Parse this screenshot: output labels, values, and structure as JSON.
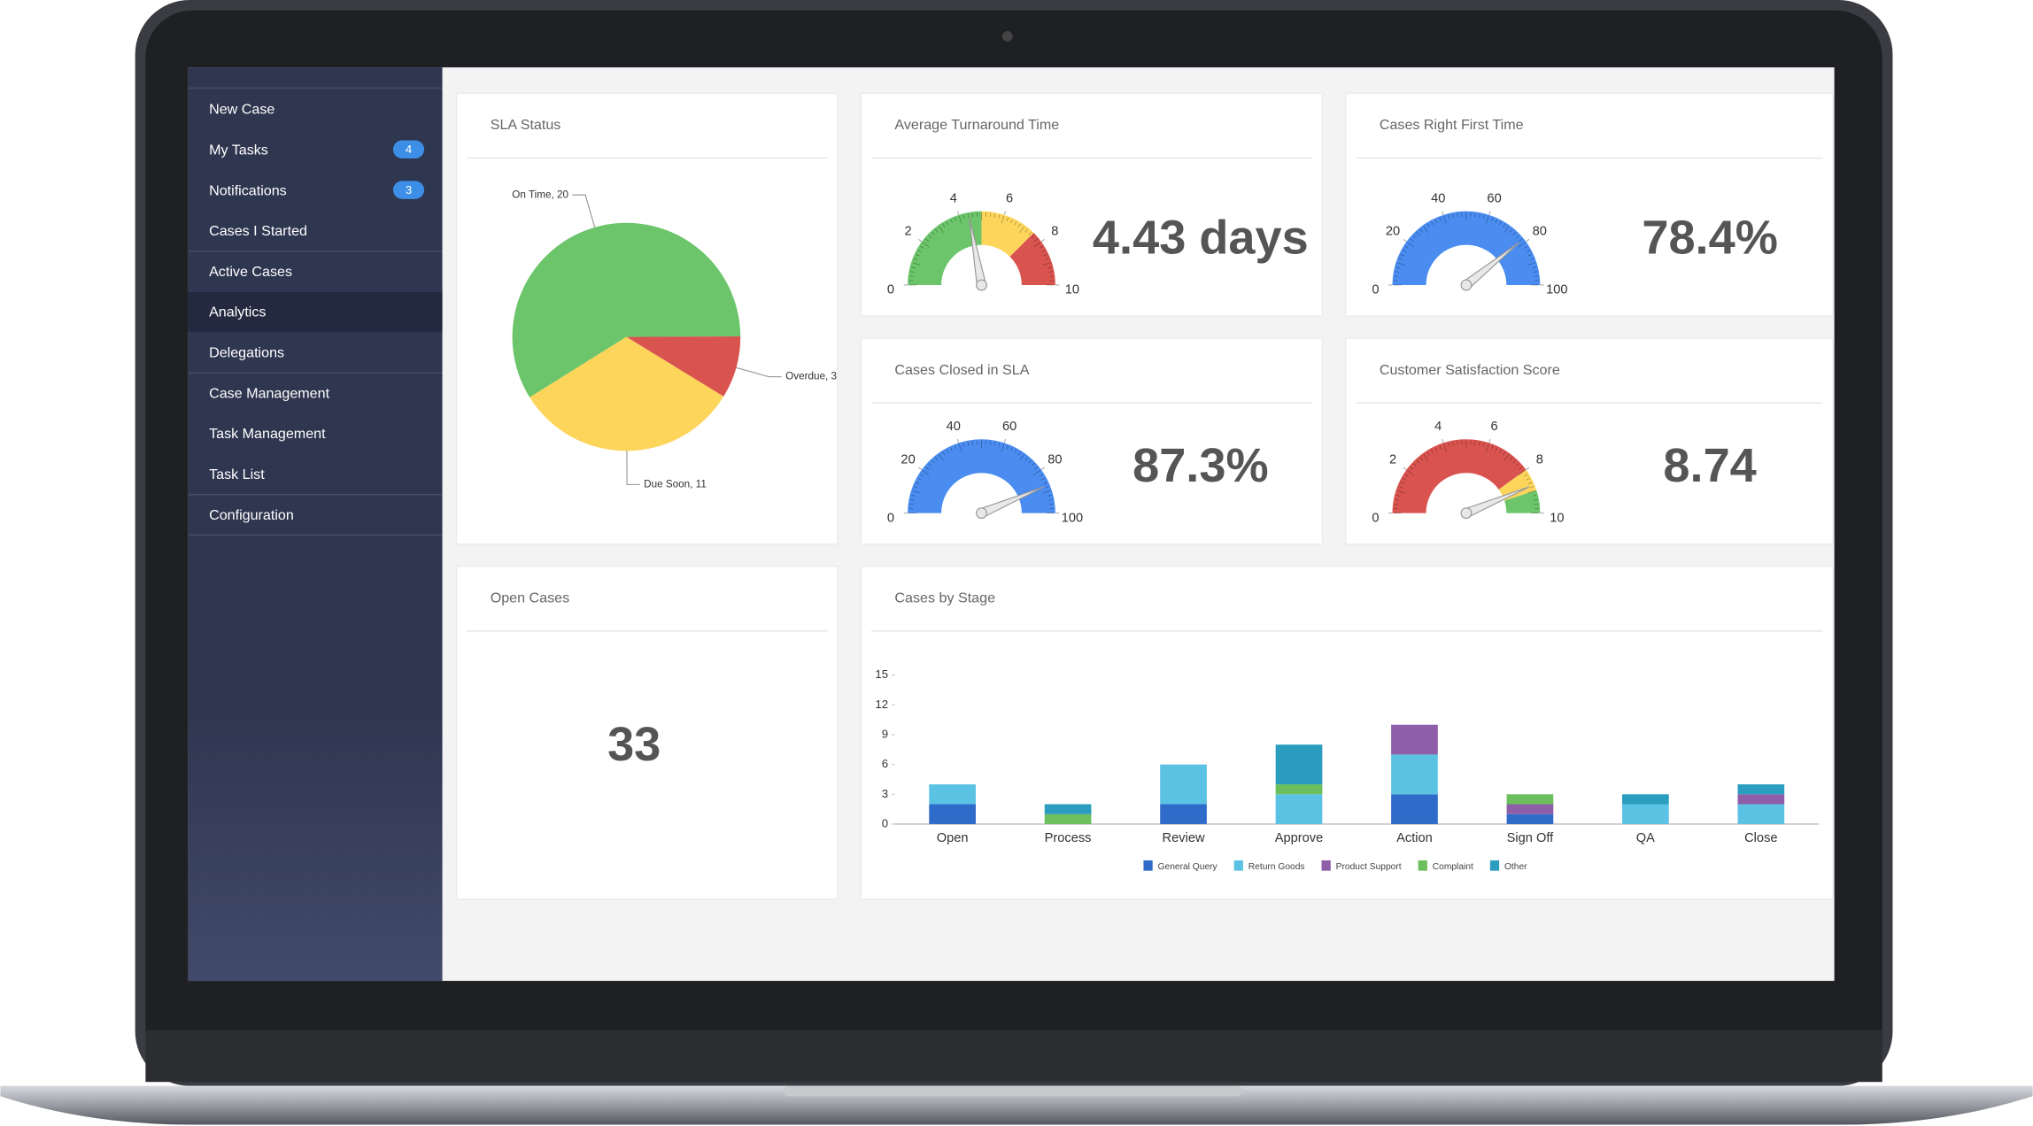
{
  "sidebar": {
    "items": [
      {
        "label": "New Case"
      },
      {
        "label": "My Tasks",
        "badge": 4
      },
      {
        "label": "Notifications",
        "badge": 3
      },
      {
        "label": "Cases I Started"
      },
      {
        "label": "Active Cases"
      },
      {
        "label": "Analytics",
        "active": true
      },
      {
        "label": "Delegations"
      },
      {
        "label": "Case Management"
      },
      {
        "label": "Task Management"
      },
      {
        "label": "Task List"
      },
      {
        "label": "Configuration"
      }
    ]
  },
  "sla_status": {
    "type": "pie",
    "title": "SLA Status",
    "values": [
      20,
      3,
      11
    ],
    "value_labels": [
      "On Time, 20",
      "Overdue, 3",
      "Due Soon, 11"
    ],
    "colors": [
      "#6cc56b",
      "#d9534f",
      "#fdd55b"
    ]
  },
  "gauges": [
    {
      "type": "gauge",
      "title": "Average Turnaround Time",
      "value": 4.43,
      "value_label": "4.43 days",
      "range": [
        0,
        10
      ],
      "ticks": [
        0,
        2,
        4,
        6,
        8,
        10
      ],
      "bands": [
        {
          "to": 5,
          "color": "#6cc56b"
        },
        {
          "to": 7.5,
          "color": "#fdd55b"
        },
        {
          "to": 10,
          "color": "#d9534f"
        }
      ]
    },
    {
      "type": "gauge",
      "title": "Cases Right First Time",
      "value": 78.4,
      "value_label": "78.4%",
      "range": [
        0,
        100
      ],
      "ticks": [
        0,
        20,
        40,
        60,
        80,
        100
      ],
      "bands": [
        {
          "to": 100,
          "color": "#4a8cf0"
        }
      ]
    },
    {
      "type": "gauge",
      "title": "Cases Closed in SLA",
      "value": 87.3,
      "value_label": "87.3%",
      "range": [
        0,
        100
      ],
      "ticks": [
        0,
        20,
        40,
        60,
        80,
        100
      ],
      "bands": [
        {
          "to": 100,
          "color": "#4a8cf0"
        }
      ]
    },
    {
      "type": "gauge",
      "title": "Customer Satisfaction Score",
      "value": 8.74,
      "value_label": "8.74",
      "range": [
        0,
        10
      ],
      "ticks": [
        0,
        2,
        4,
        6,
        8,
        10
      ],
      "bands": [
        {
          "to": 8,
          "color": "#d9534f"
        },
        {
          "to": 9,
          "color": "#fdd55b"
        },
        {
          "to": 10,
          "color": "#6cc56b"
        }
      ]
    }
  ],
  "open_cases": {
    "title": "Open Cases",
    "value": 33
  },
  "cases_by_stage": {
    "type": "bar",
    "stacked": true,
    "title": "Cases by Stage",
    "categories": [
      "Open",
      "Process",
      "Review",
      "Approve",
      "Action",
      "Sign Off",
      "QA",
      "Close"
    ],
    "series": [
      {
        "name": "General Query",
        "color": "#2f6bc8",
        "values": [
          2,
          0,
          2,
          0,
          3,
          1,
          0,
          0
        ]
      },
      {
        "name": "Return Goods",
        "color": "#5bc2e4",
        "values": [
          2,
          0,
          4,
          3,
          4,
          0,
          2,
          2
        ]
      },
      {
        "name": "Product Support",
        "color": "#8e5ea8",
        "values": [
          0,
          0,
          0,
          0,
          3,
          1,
          0,
          1
        ]
      },
      {
        "name": "Complaint",
        "color": "#6cbf5c",
        "values": [
          0,
          1,
          0,
          1,
          0,
          1,
          0,
          0
        ]
      },
      {
        "name": "Other",
        "color": "#2b9dbf",
        "values": [
          0,
          1,
          0,
          4,
          0,
          0,
          1,
          1
        ]
      }
    ],
    "ylim": [
      0,
      15
    ],
    "yticks": [
      0,
      3,
      6,
      9,
      12,
      15
    ]
  }
}
